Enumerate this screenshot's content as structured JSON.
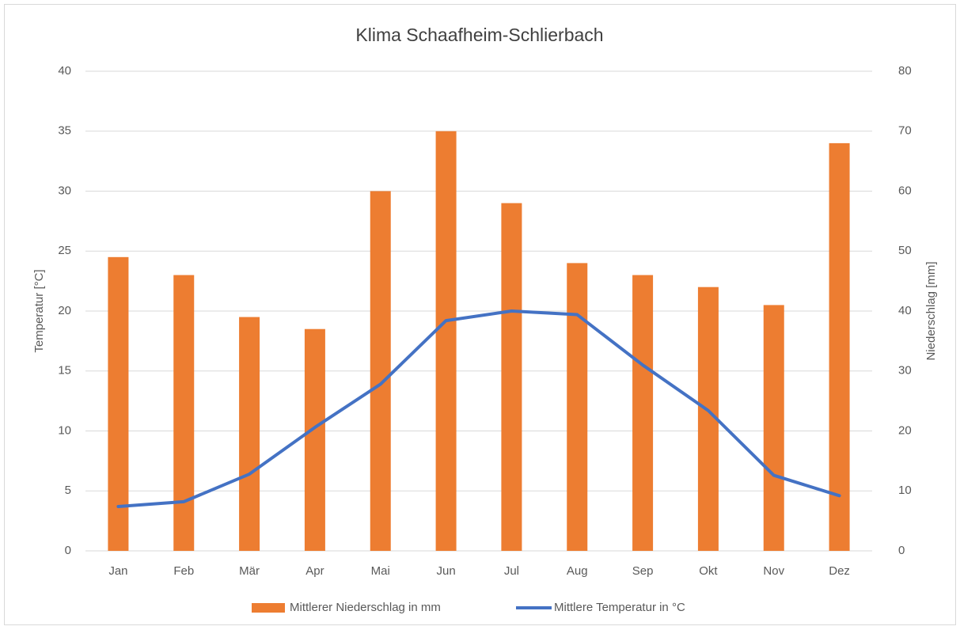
{
  "chart_data": {
    "type": "combo",
    "title": "Klima Schaafheim-Schlierbach",
    "categories": [
      "Jan",
      "Feb",
      "Mär",
      "Apr",
      "Mai",
      "Jun",
      "Jul",
      "Aug",
      "Sep",
      "Okt",
      "Nov",
      "Dez"
    ],
    "series": [
      {
        "name": "Mittlerer Niederschlag in mm",
        "type": "bar",
        "axis": "y2",
        "color": "#ed7d31",
        "values": [
          49,
          46,
          39,
          37,
          60,
          70,
          58,
          48,
          46,
          44,
          41,
          68
        ]
      },
      {
        "name": "Mittlere Temperatur in °C",
        "type": "line",
        "axis": "y",
        "color": "#4472c4",
        "values": [
          3.7,
          4.1,
          6.4,
          10.3,
          13.9,
          19.2,
          20.0,
          19.7,
          15.5,
          11.7,
          6.3,
          4.6
        ]
      }
    ],
    "ylabel": "Temperatur [°C]",
    "y2label": "Niederschlag [mm]",
    "ylim": [
      0,
      40
    ],
    "yticks": [
      0,
      5,
      10,
      15,
      20,
      25,
      30,
      35,
      40
    ],
    "y2lim": [
      0,
      80
    ],
    "y2ticks": [
      0,
      10,
      20,
      30,
      40,
      50,
      60,
      70,
      80
    ],
    "grid": true,
    "legend": "bottom"
  }
}
